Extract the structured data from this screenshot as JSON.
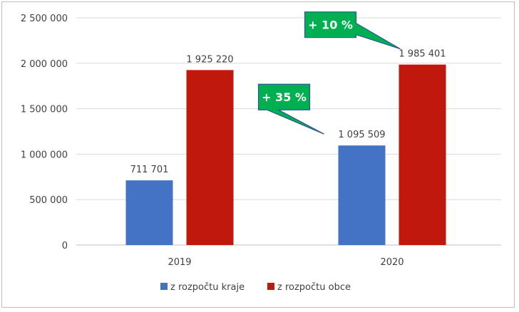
{
  "chart_data": {
    "type": "bar",
    "title": "",
    "xlabel": "",
    "ylabel": "",
    "categories": [
      "2019",
      "2020"
    ],
    "series": [
      {
        "name": "z rozpočtu kraje",
        "color": "#4472c4",
        "values": [
          711701,
          1095509
        ],
        "labels": [
          "711 701",
          "1 095 509"
        ]
      },
      {
        "name": "z rozpočtu obce",
        "color": "#c0180c",
        "values": [
          1925220,
          1985401
        ],
        "labels": [
          "1 925 220",
          "1 985 401"
        ]
      }
    ],
    "ylim": [
      0,
      2500000
    ],
    "yticks": [
      0,
      500000,
      1000000,
      1500000,
      2000000,
      2500000
    ],
    "ytick_labels": [
      "0",
      "500 000",
      "1 000 000",
      "1 500 000",
      "2 000 000",
      "2 500 000"
    ],
    "grid": true,
    "legend": "bottom",
    "annotations": [
      {
        "text": "+ 35 %",
        "category": "2020",
        "series": "z rozpočtu kraje",
        "color": "#00b050"
      },
      {
        "text": "+ 10 %",
        "category": "2020",
        "series": "z rozpočtu obce",
        "color": "#00b050"
      }
    ]
  }
}
